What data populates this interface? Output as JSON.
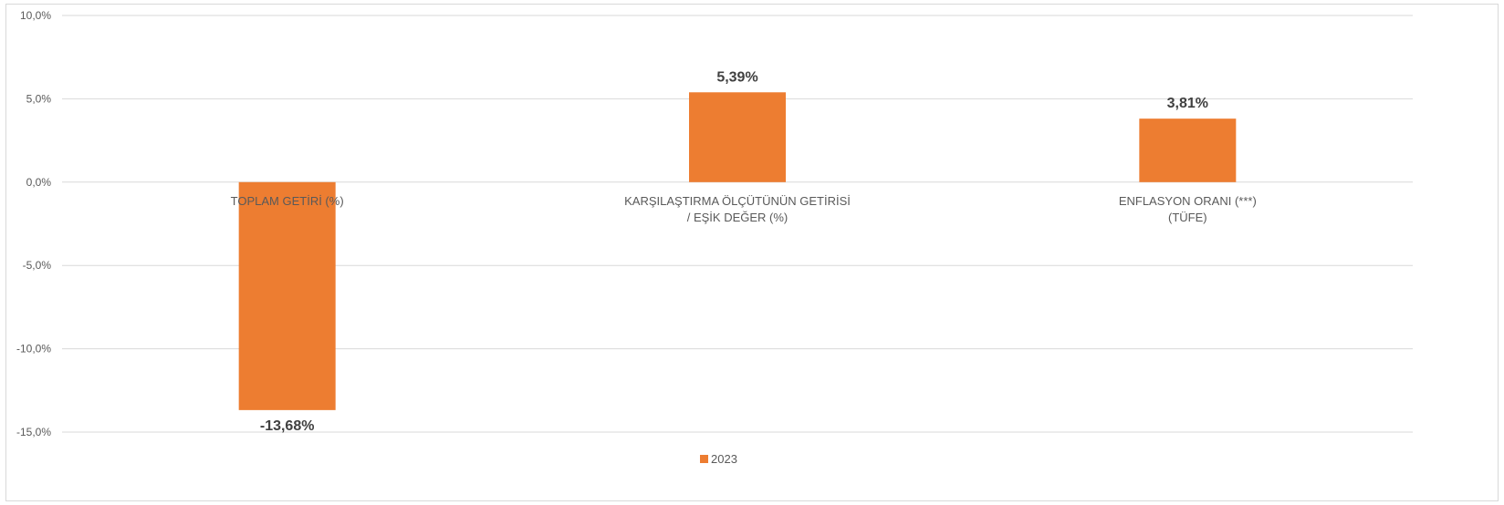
{
  "chart_data": {
    "type": "bar",
    "categories": [
      "TOPLAM GETİRİ (%)",
      "KARŞILAŞTIRMA ÖLÇÜTÜNÜN GETİRİSİ\n/ EŞİK DEĞER (%)",
      "ENFLASYON ORANI (***)\n(TÜFE)"
    ],
    "series": [
      {
        "name": "2023",
        "values": [
          -13.68,
          5.39,
          3.81
        ],
        "labels": [
          "-13,68%",
          "5,39%",
          "3,81%"
        ],
        "color": "#ED7D31"
      }
    ],
    "ylim": [
      -15,
      10
    ],
    "yticks": [
      10,
      5,
      0,
      -5,
      -10,
      -15
    ],
    "ytick_labels": [
      "10,0%",
      "5,0%",
      "0,0%",
      "-5,0%",
      "-10,0%",
      "-15,0%"
    ],
    "grid": true,
    "legend_position": "bottom",
    "colors": {
      "bar": "#ED7D31",
      "grid": "#d9d9d9",
      "axis_text": "#595959",
      "label_text": "#404040"
    }
  }
}
